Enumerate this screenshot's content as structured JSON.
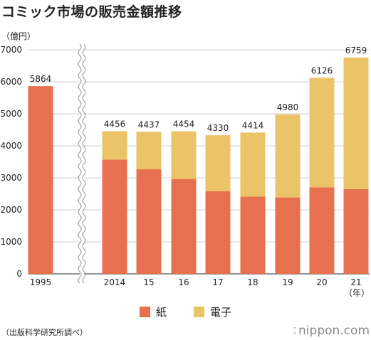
{
  "title": "コミック市場の販売金額推移",
  "unit_label": "（億円）",
  "year_unit": "（年）",
  "source": "（出版科学研究所調べ）",
  "brand": "nippon.com",
  "legend": [
    {
      "name": "紙",
      "color": "#e7714f"
    },
    {
      "name": "電子",
      "color": "#ebc468"
    }
  ],
  "chart_data": {
    "type": "bar",
    "stacked": true,
    "ylim": [
      0,
      7000
    ],
    "yticks": [
      0,
      1000,
      2000,
      3000,
      4000,
      5000,
      6000,
      7000
    ],
    "axis_break_after": "1995",
    "categories": [
      "1995",
      "2014",
      "15",
      "16",
      "17",
      "18",
      "19",
      "20",
      "21"
    ],
    "series": [
      {
        "name": "紙",
        "color": "#e7714f",
        "values": [
          5864,
          3569,
          3266,
          2963,
          2583,
          2412,
          2387,
          2706,
          2645
        ]
      },
      {
        "name": "電子",
        "color": "#ebc468",
        "values": [
          0,
          887,
          1171,
          1491,
          1747,
          2002,
          2593,
          3420,
          4114
        ]
      }
    ],
    "totals": [
      5864,
      4456,
      4437,
      4454,
      4330,
      4414,
      4980,
      6126,
      6759
    ],
    "grid": true
  }
}
